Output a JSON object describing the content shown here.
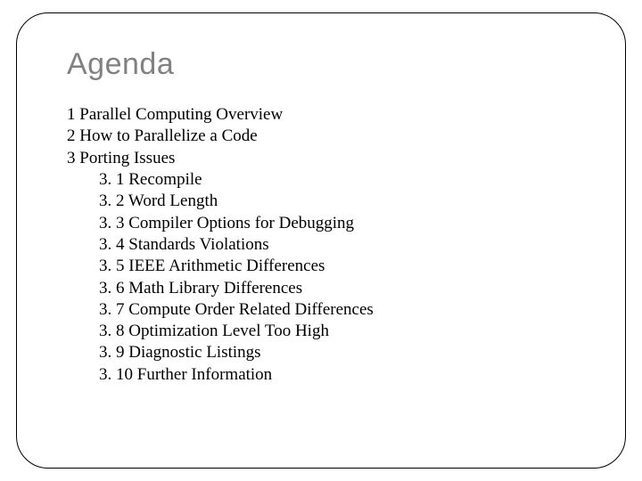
{
  "slide": {
    "title": "Agenda",
    "title_color": "#818181",
    "title_font_family": "Arial",
    "title_font_size": 34,
    "body_font_family": "Times New Roman",
    "body_font_size": 19,
    "body_color": "#000000",
    "frame_border_color": "#000000",
    "frame_border_radius": 36,
    "background_color": "#ffffff",
    "items": [
      {
        "num": "1",
        "label": "Parallel Computing Overview"
      },
      {
        "num": "2",
        "label": "How to Parallelize a Code"
      },
      {
        "num": "3",
        "label": "Porting Issues"
      }
    ],
    "subitems": [
      {
        "num": "3. 1",
        "label": "Recompile"
      },
      {
        "num": "3. 2",
        "label": "Word Length"
      },
      {
        "num": "3. 3",
        "label": "Compiler Options for Debugging"
      },
      {
        "num": "3. 4",
        "label": "Standards Violations"
      },
      {
        "num": "3. 5",
        "label": "IEEE Arithmetic Differences"
      },
      {
        "num": "3. 6",
        "label": "Math Library Differences"
      },
      {
        "num": "3. 7",
        "label": "Compute Order Related Differences"
      },
      {
        "num": "3. 8",
        "label": "Optimization Level Too High"
      },
      {
        "num": "3. 9",
        "label": "Diagnostic Listings"
      },
      {
        "num": "3. 10",
        "label": "Further Information"
      }
    ]
  }
}
